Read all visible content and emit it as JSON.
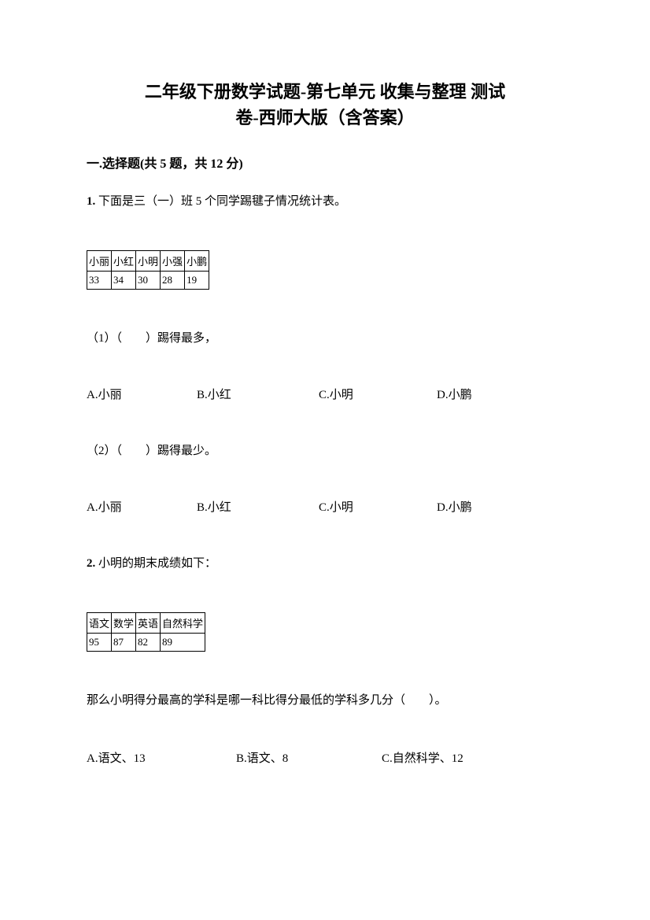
{
  "title_line1": "二年级下册数学试题-第七单元 收集与整理 测试",
  "title_line2": "卷-西师大版（含答案）",
  "section1_header": "一.选择题(共 5 题，共 12 分)",
  "q1": {
    "num": "1.",
    "intro": " 下面是三（一）班 5 个同学踢毽子情况统计表。",
    "table": {
      "columns": [
        "小丽",
        "小红",
        "小明",
        "小强",
        "小鹏"
      ],
      "rows": [
        [
          "33",
          "34",
          "30",
          "28",
          "19"
        ]
      ]
    },
    "sub1": "（1）（　　）踢得最多，",
    "sub2": "（2）（　　）踢得最少。",
    "options": {
      "a": "A.小丽",
      "b": "B.小红",
      "c": "C.小明",
      "d": "D.小鹏"
    }
  },
  "q2": {
    "num": "2.",
    "intro": " 小明的期末成绩如下：",
    "table": {
      "columns": [
        "语文",
        "数学",
        "英语",
        "自然科学"
      ],
      "rows": [
        [
          "95",
          "87",
          "82",
          "89"
        ]
      ]
    },
    "followup": "那么小明得分最高的学科是哪一科比得分最低的学科多几分（　　）。",
    "options": {
      "a": "A.语文、13",
      "b": "B.语文、8",
      "c": "C.自然科学、12"
    }
  }
}
